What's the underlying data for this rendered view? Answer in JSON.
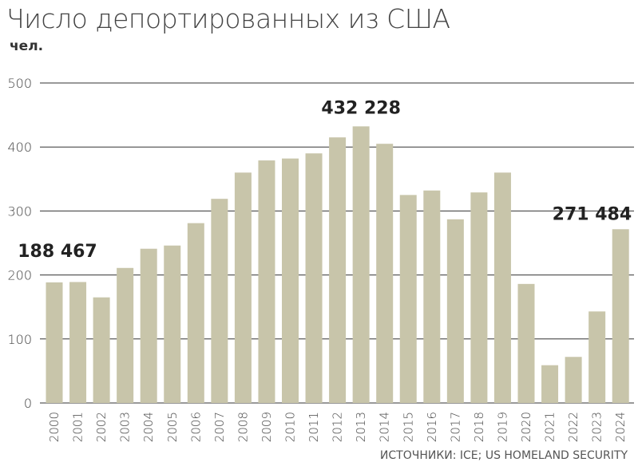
{
  "chart_data": {
    "type": "bar",
    "title": "Число депортированных из США",
    "ylabel": "чел.",
    "xlabel": "",
    "categories": [
      "2000",
      "2001",
      "2002",
      "2003",
      "2004",
      "2005",
      "2006",
      "2007",
      "2008",
      "2009",
      "2010",
      "2011",
      "2012",
      "2013",
      "2014",
      "2015",
      "2016",
      "2017",
      "2018",
      "2019",
      "2020",
      "2021",
      "2022",
      "2023",
      "2024"
    ],
    "values": [
      188.467,
      189,
      165,
      211,
      241,
      246,
      281,
      319,
      360,
      379,
      382,
      390,
      415,
      432.228,
      405,
      325,
      332,
      287,
      329,
      360,
      186,
      59,
      72,
      143,
      271.484
    ],
    "ylim": [
      0,
      500
    ],
    "yticks": [
      0,
      100,
      200,
      300,
      400,
      500
    ],
    "grid": true,
    "annotations": [
      {
        "category": "2000",
        "text": "188 467"
      },
      {
        "category": "2013",
        "text": "432 228"
      },
      {
        "category": "2024",
        "text": "271 484"
      }
    ]
  },
  "source": "ИСТОЧНИКИ: ICE; US HOMELAND SECURITY",
  "colors": {
    "bar": "#c8c5aa",
    "grid": "#333333"
  }
}
